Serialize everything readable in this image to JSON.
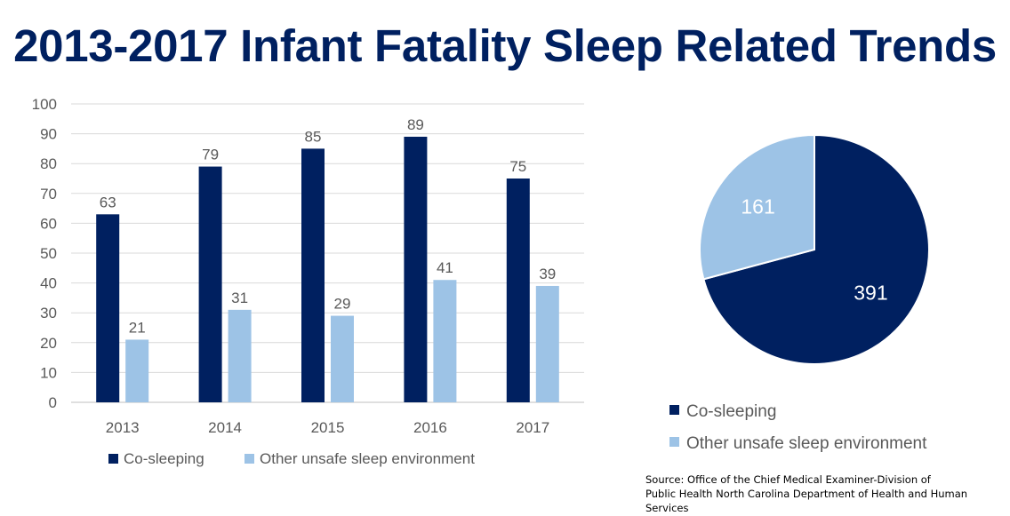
{
  "title": "2013-2017 Infant Fatality Sleep Related Trends",
  "colors": {
    "co_sleeping": "#002060",
    "other": "#9DC3E6",
    "text": "#595959",
    "grid": "#D9D9D9"
  },
  "chart_data": [
    {
      "type": "bar",
      "title": "",
      "categories": [
        "2013",
        "2014",
        "2015",
        "2016",
        "2017"
      ],
      "series": [
        {
          "name": "Co-sleeping",
          "values": [
            63,
            79,
            85,
            89,
            75
          ]
        },
        {
          "name": "Other unsafe sleep environment",
          "values": [
            21,
            31,
            29,
            41,
            39
          ]
        }
      ],
      "ylim": [
        0,
        100
      ],
      "yticks": [
        0,
        10,
        20,
        30,
        40,
        50,
        60,
        70,
        80,
        90,
        100
      ],
      "grid": true,
      "legend": "bottom",
      "xlabel": "",
      "ylabel": ""
    },
    {
      "type": "pie",
      "labels": [
        "Co-sleeping",
        "Other unsafe sleep environment"
      ],
      "values": [
        391,
        161
      ],
      "legend": "bottom"
    }
  ],
  "source": {
    "line1": "Source: Office of the Chief Medical Examiner-Division of",
    "line2": "Public Health North Carolina Department of Health and Human Services"
  }
}
